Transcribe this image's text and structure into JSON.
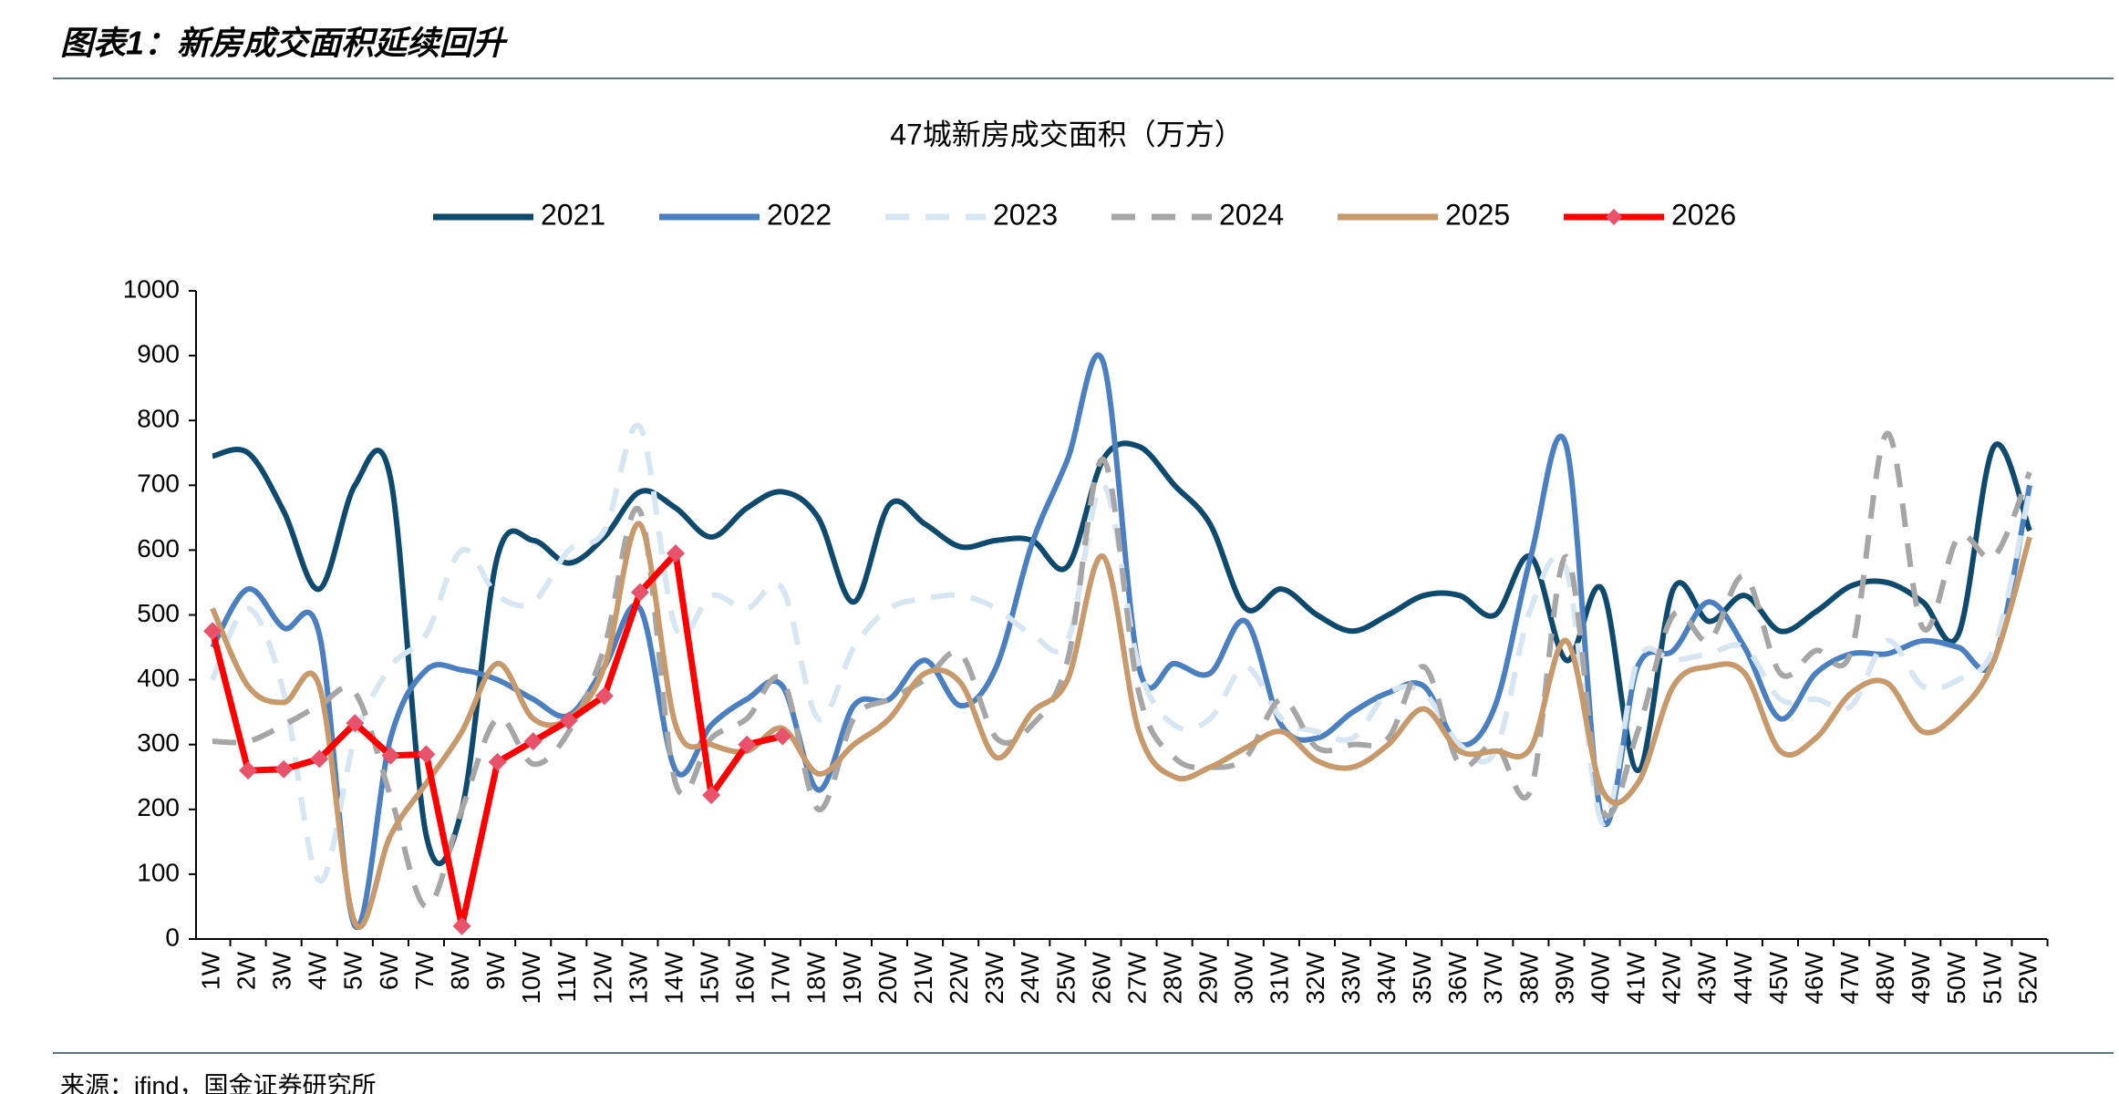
{
  "header": {
    "title": "图表1：新房成交面积延续回升"
  },
  "source": "来源：ifind，国金证券研究所",
  "chart_data": {
    "type": "line",
    "title": "47城新房成交面积（万方）",
    "categories": [
      "1W",
      "2W",
      "3W",
      "4W",
      "5W",
      "6W",
      "7W",
      "8W",
      "9W",
      "10W",
      "11W",
      "12W",
      "13W",
      "14W",
      "15W",
      "16W",
      "17W",
      "18W",
      "19W",
      "20W",
      "21W",
      "22W",
      "23W",
      "24W",
      "25W",
      "26W",
      "27W",
      "28W",
      "29W",
      "30W",
      "31W",
      "32W",
      "33W",
      "34W",
      "35W",
      "36W",
      "37W",
      "38W",
      "39W",
      "40W",
      "41W",
      "42W",
      "43W",
      "44W",
      "45W",
      "46W",
      "47W",
      "48W",
      "49W",
      "50W",
      "51W",
      "52W"
    ],
    "ylim": [
      0,
      1000
    ],
    "yticks": [
      0,
      100,
      200,
      300,
      400,
      500,
      600,
      700,
      800,
      900,
      1000
    ],
    "grid": false,
    "legend": "top",
    "series": [
      {
        "name": "2021",
        "color": "#0d4a6e",
        "smooth": true,
        "values": [
          745,
          750,
          660,
          540,
          700,
          710,
          160,
          200,
          590,
          615,
          580,
          620,
          690,
          665,
          620,
          665,
          690,
          650,
          520,
          670,
          640,
          605,
          615,
          615,
          575,
          740,
          760,
          700,
          640,
          510,
          540,
          500,
          475,
          500,
          530,
          530,
          500,
          590,
          430,
          540,
          260,
          540,
          490,
          530,
          475,
          505,
          545,
          550,
          520,
          470,
          760,
          630
        ]
      },
      {
        "name": "2022",
        "color": "#4a7fc1",
        "smooth": true,
        "values": [
          450,
          540,
          480,
          470,
          20,
          310,
          415,
          415,
          400,
          370,
          345,
          420,
          510,
          260,
          330,
          370,
          390,
          230,
          360,
          370,
          430,
          360,
          420,
          610,
          740,
          890,
          420,
          425,
          410,
          490,
          330,
          310,
          350,
          380,
          390,
          300,
          360,
          590,
          760,
          185,
          420,
          445,
          520,
          450,
          340,
          410,
          440,
          440,
          460,
          450,
          430,
          700
        ]
      },
      {
        "name": "2023",
        "color": "#d6e6f2",
        "smooth": true,
        "dash": true,
        "values": [
          400,
          510,
          380,
          90,
          310,
          420,
          470,
          600,
          530,
          520,
          600,
          630,
          790,
          480,
          530,
          510,
          540,
          340,
          450,
          510,
          525,
          530,
          510,
          470,
          460,
          700,
          420,
          330,
          340,
          420,
          340,
          320,
          310,
          380,
          380,
          300,
          290,
          510,
          570,
          180,
          430,
          430,
          440,
          450,
          370,
          370,
          360,
          460,
          390,
          400,
          450,
          690
        ]
      },
      {
        "name": "2024",
        "color": "#a6a6a6",
        "smooth": true,
        "dash": true,
        "values": [
          305,
          305,
          330,
          360,
          380,
          220,
          50,
          200,
          340,
          270,
          320,
          450,
          660,
          240,
          310,
          340,
          400,
          200,
          340,
          370,
          400,
          440,
          310,
          330,
          430,
          740,
          380,
          280,
          265,
          280,
          370,
          295,
          300,
          310,
          420,
          270,
          300,
          230,
          590,
          200,
          320,
          500,
          460,
          560,
          410,
          445,
          445,
          780,
          480,
          620,
          590,
          720
        ]
      },
      {
        "name": "2025",
        "color": "#c8996a",
        "smooth": true,
        "values": [
          510,
          390,
          365,
          390,
          25,
          160,
          240,
          320,
          425,
          340,
          340,
          420,
          640,
          330,
          300,
          290,
          325,
          255,
          300,
          340,
          410,
          395,
          280,
          350,
          400,
          590,
          320,
          250,
          265,
          295,
          320,
          275,
          265,
          300,
          355,
          290,
          290,
          295,
          460,
          230,
          240,
          390,
          420,
          410,
          290,
          310,
          380,
          395,
          320,
          350,
          430,
          620
        ]
      },
      {
        "name": "2026",
        "color": "#ff0000",
        "marker": "diamond",
        "marker_color": "#e8536b",
        "values": [
          475,
          260,
          262,
          278,
          333,
          283,
          285,
          20,
          273,
          305,
          337,
          375,
          535,
          595,
          222,
          300,
          313,
          null,
          null,
          null,
          null,
          null,
          null,
          null,
          null,
          null,
          null,
          null,
          null,
          null,
          null,
          null,
          null,
          null,
          null,
          null,
          null,
          null,
          null,
          null,
          null,
          null,
          null,
          null,
          null,
          null,
          null,
          null,
          null,
          null,
          null,
          null
        ]
      }
    ]
  }
}
